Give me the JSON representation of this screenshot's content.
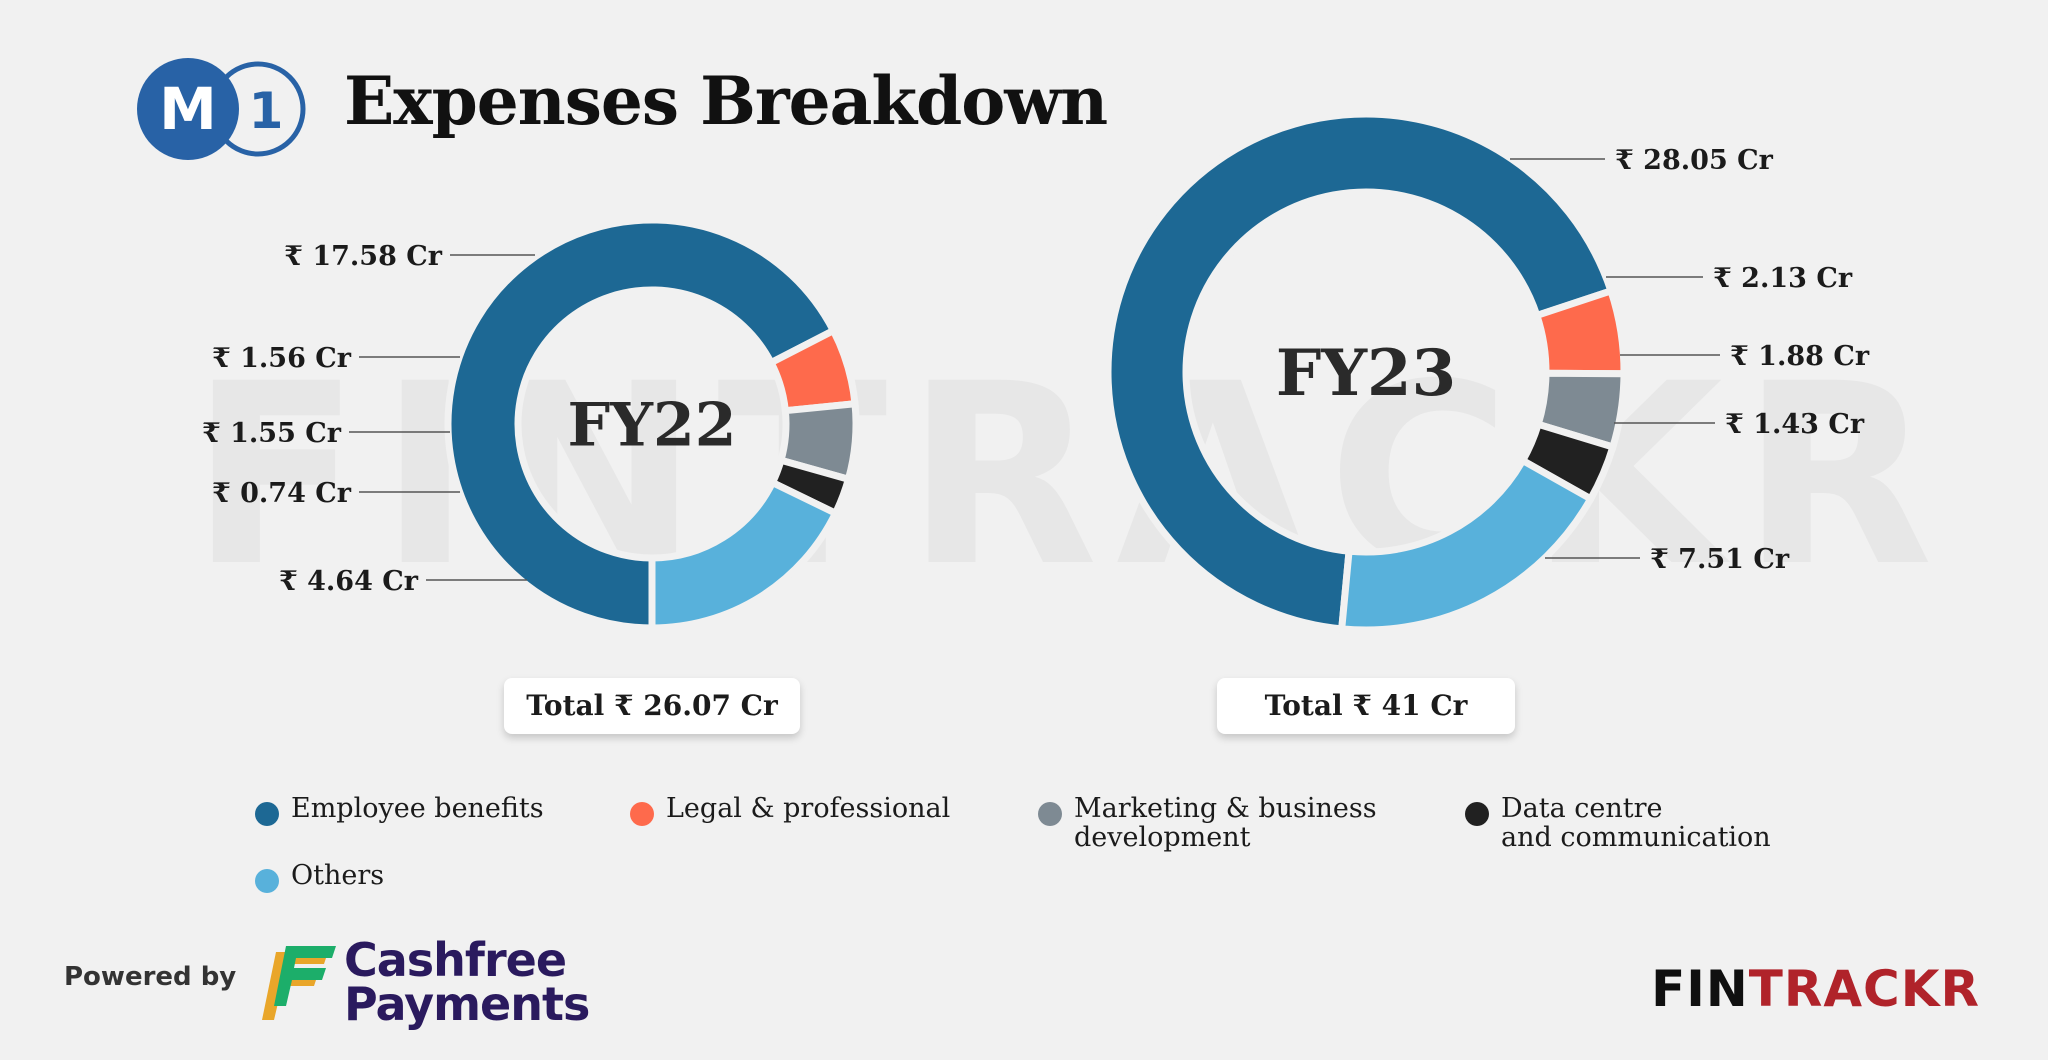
{
  "header": {
    "logo_letter": "M",
    "logo_number": "1",
    "title": "Expenses Breakdown"
  },
  "watermark": "FINTRACKR",
  "colors": {
    "employee_benefits": "#1d6894",
    "legal_professional": "#fe6a4c",
    "marketing": "#7e8a93",
    "data_centre": "#212121",
    "others": "#58b1db"
  },
  "chart_data": [
    {
      "type": "pie",
      "variant": "donut",
      "center_label": "FY22",
      "categories": [
        "Employee benefits",
        "Legal & professional",
        "Marketing & business development",
        "Data centre and communication",
        "Others"
      ],
      "values": [
        17.58,
        1.56,
        1.55,
        0.74,
        4.64
      ],
      "value_labels": [
        "₹ 17.58 Cr",
        "₹ 1.56 Cr",
        "₹ 1.55 Cr",
        "₹ 0.74 Cr",
        "₹ 4.64 Cr"
      ],
      "total_label": "Total ₹ 26.07 Cr",
      "unit": "₹ Cr"
    },
    {
      "type": "pie",
      "variant": "donut",
      "center_label": "FY23",
      "categories": [
        "Employee benefits",
        "Legal & professional",
        "Marketing & business development",
        "Data centre and communication",
        "Others"
      ],
      "values": [
        28.05,
        2.13,
        1.88,
        1.43,
        7.51
      ],
      "value_labels": [
        "₹ 28.05 Cr",
        "₹ 2.13 Cr",
        "₹ 1.88 Cr",
        "₹ 1.43 Cr",
        "₹ 7.51 Cr"
      ],
      "total_label": "Total ₹ 41 Cr",
      "unit": "₹ Cr"
    }
  ],
  "legend": [
    {
      "label": "Employee benefits",
      "color_key": "employee_benefits"
    },
    {
      "label": "Legal & professional",
      "color_key": "legal_professional"
    },
    {
      "label": "Marketing & business\ndevelopment",
      "color_key": "marketing"
    },
    {
      "label": "Data centre\nand communication",
      "color_key": "data_centre"
    },
    {
      "label": "Others",
      "color_key": "others"
    }
  ],
  "footer": {
    "powered_by": "Powered by",
    "sponsor_name": "Cashfree\nPayments",
    "brand_part1": "FIN",
    "brand_part2": "TRACKR"
  }
}
